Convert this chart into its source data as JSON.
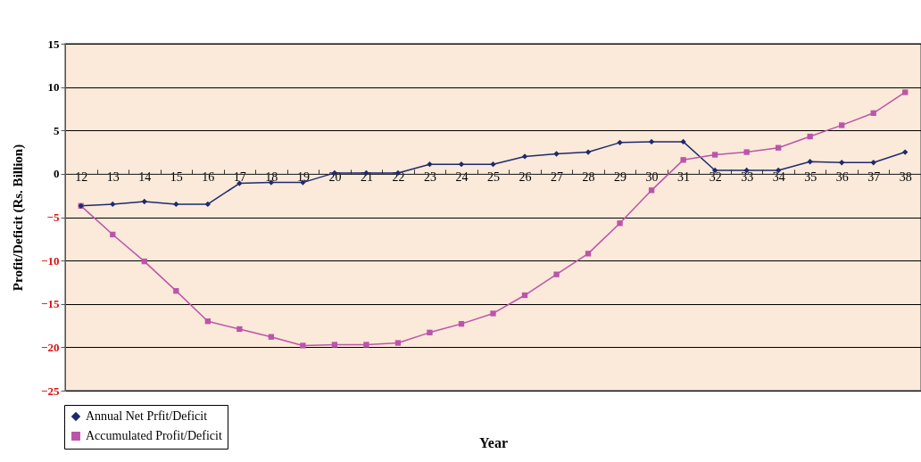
{
  "chart_data": {
    "type": "line",
    "xlabel": "Year",
    "ylabel": "Profit/Deficit (Rs. Billion)",
    "categories": [
      "12",
      "13",
      "14",
      "15",
      "16",
      "17",
      "18",
      "19",
      "20",
      "21",
      "22",
      "23",
      "24",
      "25",
      "26",
      "27",
      "28",
      "29",
      "30",
      "31",
      "32",
      "33",
      "34",
      "35",
      "36",
      "37",
      "38"
    ],
    "series": [
      {
        "name": "Annual Net Prfit/Deficit",
        "color": "#1f2a6e",
        "marker": "diamond",
        "values": [
          -3.7,
          -3.5,
          -3.2,
          -3.5,
          -3.5,
          -1.1,
          -1.0,
          -1.0,
          0.1,
          0.1,
          0.1,
          1.1,
          1.1,
          1.1,
          2.0,
          2.3,
          2.5,
          3.6,
          3.7,
          3.7,
          0.4,
          0.4,
          0.4,
          1.4,
          1.3,
          1.3,
          2.5
        ]
      },
      {
        "name": "Accumulated Profit/Deficit",
        "color": "#bb55aa",
        "marker": "square",
        "values": [
          -3.7,
          -7.0,
          -10.1,
          -13.5,
          -17.0,
          -17.9,
          -18.8,
          -19.8,
          -19.7,
          -19.7,
          -19.5,
          -18.3,
          -17.3,
          -16.1,
          -14.0,
          -11.6,
          -9.2,
          -5.7,
          -1.9,
          1.6,
          2.2,
          2.5,
          3.0,
          4.3,
          5.6,
          7.0,
          9.4
        ]
      }
    ],
    "ylim": [
      -25,
      15
    ],
    "yticks": [
      -25,
      -20,
      -15,
      -10,
      -5,
      0,
      5,
      10,
      15
    ],
    "grid": "y",
    "legend": "bottom left",
    "line_style": "solid"
  }
}
